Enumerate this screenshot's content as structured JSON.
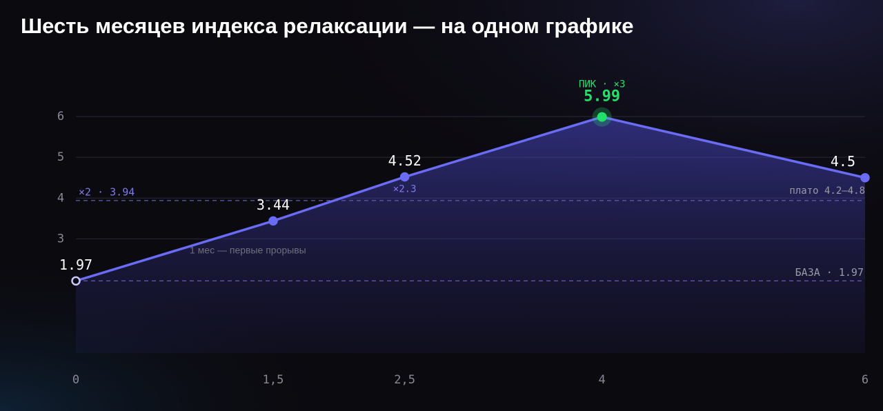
{
  "chart_data": {
    "type": "area",
    "title": "Шесть месяцев индекса релаксации — на одном графике",
    "x": [
      0,
      1.5,
      2.5,
      4,
      6
    ],
    "series": [
      {
        "values": [
          1.97,
          3.44,
          4.52,
          5.99,
          4.5
        ],
        "color": "#6b6cf5"
      }
    ],
    "peak_color": "#22e06a",
    "xlim": [
      0,
      6
    ],
    "xticks": [
      0,
      {
        "value": 1.5,
        "label": "1,5"
      },
      {
        "value": 2.5,
        "label": "2,5"
      },
      4,
      6
    ],
    "ylim": [
      0.2,
      6
    ],
    "yticks": [
      3,
      4,
      5,
      6
    ],
    "grid": true,
    "reference_lines": [
      {
        "value": 3.94,
        "label": "×2 · 3.94"
      },
      {
        "value": 1.97,
        "label": "БАЗА · 1.97"
      }
    ],
    "annotations": {
      "peak": "ПИК · ×3",
      "plateau": "плато 4.2–4.8",
      "growth": "×2.3",
      "first_month": "1 мес — первые прорывы"
    }
  }
}
